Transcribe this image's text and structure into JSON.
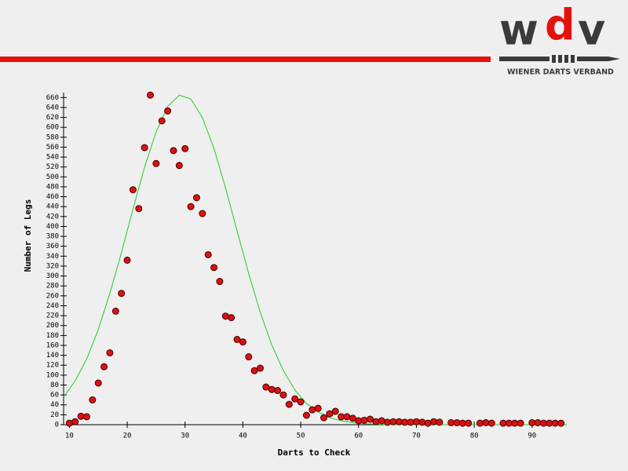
{
  "logo": {
    "letters": [
      "w",
      "d",
      "v"
    ],
    "tagline": "WIENER DARTS VERBAND"
  },
  "chart_data": {
    "type": "scatter",
    "xlabel": "Darts to Check",
    "ylabel": "Number of Legs",
    "xlim": [
      9,
      96
    ],
    "ylim": [
      0,
      670
    ],
    "xticks": [
      10,
      20,
      30,
      40,
      50,
      60,
      70,
      80,
      90
    ],
    "yticks": [
      0,
      20,
      40,
      60,
      80,
      100,
      120,
      140,
      160,
      180,
      200,
      220,
      240,
      260,
      280,
      300,
      320,
      340,
      360,
      380,
      400,
      420,
      440,
      460,
      480,
      500,
      520,
      540,
      560,
      580,
      600,
      620,
      640,
      660
    ],
    "series": [
      {
        "type": "scatter",
        "color": "#dd1111",
        "x": [
          10,
          11,
          12,
          13,
          14,
          15,
          16,
          17,
          18,
          19,
          20,
          21,
          22,
          23,
          24,
          25,
          26,
          27,
          28,
          29,
          30,
          31,
          32,
          33,
          34,
          35,
          36,
          37,
          38,
          39,
          40,
          41,
          42,
          43,
          44,
          45,
          46,
          47,
          48,
          49,
          50,
          51,
          52,
          53,
          54,
          55,
          56,
          57,
          58,
          59,
          60,
          61,
          62,
          63,
          64,
          65,
          66,
          67,
          68,
          69,
          70,
          71,
          72,
          73,
          74,
          76,
          77,
          78,
          79,
          81,
          82,
          83,
          85,
          86,
          87,
          88,
          90,
          91,
          92,
          93,
          94,
          95
        ],
        "values": [
          3,
          6,
          17,
          16,
          50,
          84,
          117,
          145,
          229,
          265,
          332,
          474,
          436,
          559,
          665,
          527,
          613,
          633,
          553,
          523,
          557,
          440,
          458,
          426,
          343,
          317,
          289,
          219,
          216,
          172,
          167,
          137,
          109,
          114,
          76,
          71,
          69,
          60,
          41,
          52,
          46,
          19,
          30,
          33,
          14,
          22,
          27,
          16,
          16,
          13,
          8,
          9,
          11,
          6,
          8,
          5,
          6,
          6,
          5,
          5,
          6,
          5,
          3,
          6,
          5,
          4,
          4,
          3,
          3,
          3,
          4,
          3,
          3,
          3,
          3,
          3,
          4,
          4,
          3,
          3,
          3,
          3
        ]
      },
      {
        "type": "line",
        "color": "#22cc22",
        "x": [
          9,
          11,
          13,
          15,
          17,
          19,
          21,
          23,
          25,
          27,
          29,
          31,
          33,
          35,
          37,
          39,
          41,
          43,
          45,
          47,
          49,
          51,
          53,
          55,
          57,
          59,
          61,
          63,
          65,
          70,
          80,
          90,
          96
        ],
        "values": [
          56,
          88,
          133,
          192,
          265,
          347,
          435,
          519,
          591,
          642,
          665,
          657,
          620,
          557,
          478,
          391,
          305,
          227,
          161,
          109,
          70,
          43,
          26,
          14,
          8,
          4,
          2,
          1,
          0,
          0,
          0,
          0,
          0
        ]
      }
    ]
  }
}
